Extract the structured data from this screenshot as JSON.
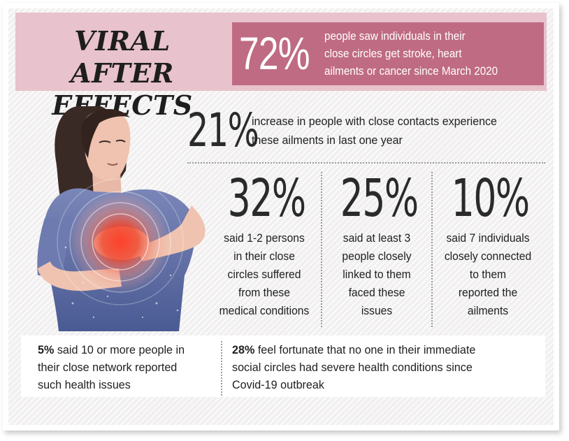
{
  "title": {
    "line1": "VIRAL AFTER",
    "line2": "EFFECTS"
  },
  "headline_stat": {
    "value": "72%",
    "lines": [
      "people saw individuals in their",
      "close circles get stroke, heart",
      "ailments or cancer since March 2020"
    ]
  },
  "stat_21": {
    "value": "21%",
    "lines": [
      "increase in people with close contacts experience",
      "these ailments in last one year"
    ]
  },
  "columns": [
    {
      "value": "32%",
      "lines": [
        "said 1-2 persons",
        "in their close",
        "circles suffered",
        "from these",
        "medical conditions"
      ]
    },
    {
      "value": "25%",
      "lines": [
        "said at least 3",
        "people closely",
        "linked to them",
        "faced these",
        "issues"
      ]
    },
    {
      "value": "10%",
      "lines": [
        "said 7 individuals",
        "closely connected",
        "to them",
        "reported the",
        "ailments"
      ]
    }
  ],
  "bottom_left": {
    "value": "5%",
    "lines": [
      " said 10 or more people in",
      "their close network reported",
      "such health issues"
    ]
  },
  "bottom_right": {
    "value": "28%",
    "lines": [
      " feel fortunate that no one in their immediate",
      "social circles had severe health conditions since",
      "Covid-19 outbreak"
    ]
  },
  "colors": {
    "header_band": "#e8c2cc",
    "stat_box": "#bf6b83",
    "shirt": "#5e6fa6",
    "pain_glow": "#e83a2a"
  },
  "illustration": "woman-clutching-chest-illustration"
}
